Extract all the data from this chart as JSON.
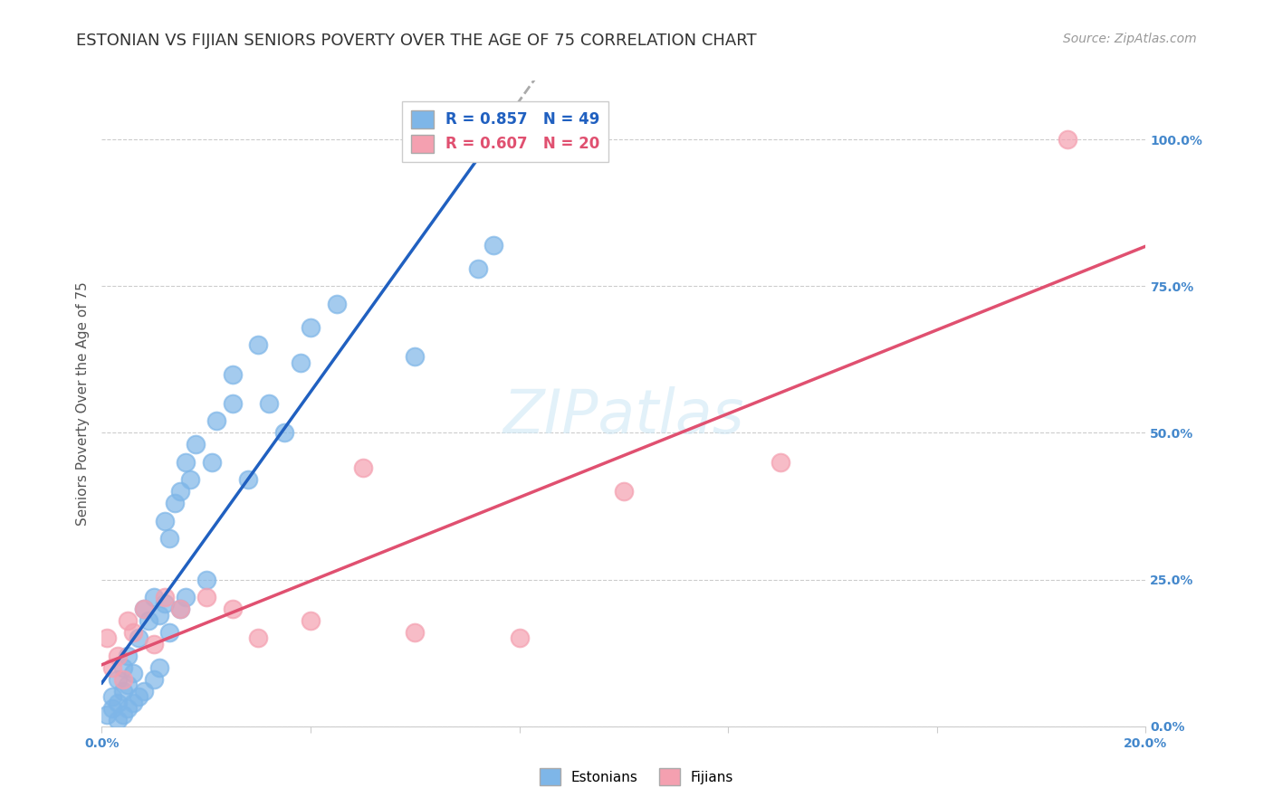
{
  "title": "ESTONIAN VS FIJIAN SENIORS POVERTY OVER THE AGE OF 75 CORRELATION CHART",
  "source": "Source: ZipAtlas.com",
  "ylabel": "Seniors Poverty Over the Age of 75",
  "xlim": [
    0.0,
    0.2
  ],
  "ylim": [
    0.0,
    1.1
  ],
  "right_yticks": [
    0.0,
    0.25,
    0.5,
    0.75,
    1.0
  ],
  "right_yticklabels": [
    "0.0%",
    "25.0%",
    "50.0%",
    "75.0%",
    "100.0%"
  ],
  "grid_yticks": [
    0.0,
    0.25,
    0.5,
    0.75,
    1.0
  ],
  "estonian_R": 0.857,
  "estonian_N": 49,
  "fijian_R": 0.607,
  "fijian_N": 20,
  "estonian_color": "#7EB6E8",
  "fijian_color": "#F4A0B0",
  "estonian_line_color": "#2060C0",
  "fijian_line_color": "#E05070",
  "watermark": "ZIPatlas",
  "estonian_x": [
    0.001,
    0.002,
    0.002,
    0.003,
    0.003,
    0.003,
    0.004,
    0.004,
    0.004,
    0.005,
    0.005,
    0.005,
    0.006,
    0.006,
    0.007,
    0.007,
    0.008,
    0.008,
    0.009,
    0.01,
    0.01,
    0.011,
    0.011,
    0.012,
    0.012,
    0.013,
    0.013,
    0.014,
    0.015,
    0.015,
    0.016,
    0.016,
    0.017,
    0.018,
    0.02,
    0.021,
    0.022,
    0.025,
    0.025,
    0.028,
    0.03,
    0.032,
    0.035,
    0.038,
    0.04,
    0.045,
    0.06,
    0.072,
    0.075
  ],
  "estonian_y": [
    0.02,
    0.03,
    0.05,
    0.01,
    0.04,
    0.08,
    0.02,
    0.06,
    0.1,
    0.03,
    0.07,
    0.12,
    0.04,
    0.09,
    0.05,
    0.15,
    0.06,
    0.2,
    0.18,
    0.08,
    0.22,
    0.1,
    0.19,
    0.21,
    0.35,
    0.16,
    0.32,
    0.38,
    0.2,
    0.4,
    0.22,
    0.45,
    0.42,
    0.48,
    0.25,
    0.45,
    0.52,
    0.55,
    0.6,
    0.42,
    0.65,
    0.55,
    0.5,
    0.62,
    0.68,
    0.72,
    0.63,
    0.78,
    0.82
  ],
  "fijian_x": [
    0.001,
    0.002,
    0.003,
    0.004,
    0.005,
    0.006,
    0.008,
    0.01,
    0.012,
    0.015,
    0.02,
    0.025,
    0.03,
    0.04,
    0.05,
    0.06,
    0.08,
    0.1,
    0.13,
    0.185
  ],
  "fijian_y": [
    0.15,
    0.1,
    0.12,
    0.08,
    0.18,
    0.16,
    0.2,
    0.14,
    0.22,
    0.2,
    0.22,
    0.2,
    0.15,
    0.18,
    0.44,
    0.16,
    0.15,
    0.4,
    0.45,
    1.0
  ],
  "background_color": "#FFFFFF",
  "plot_bg_color": "#FFFFFF",
  "title_color": "#333333",
  "source_color": "#999999",
  "axis_label_color": "#555555",
  "tick_color": "#4488CC",
  "title_fontsize": 13,
  "source_fontsize": 10,
  "ylabel_fontsize": 11,
  "tick_fontsize": 10,
  "legend_fontsize": 12,
  "watermark_fontsize": 48
}
